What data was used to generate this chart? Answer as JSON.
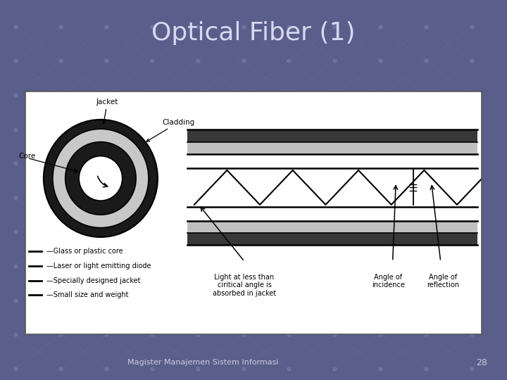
{
  "title": "Optical Fiber (1)",
  "title_color": "#D8D8F0",
  "title_fontsize": 26,
  "bg_color": "#5a5e8a",
  "footer_text": "Magister Manajemen Sistem Informasi",
  "footer_number": "28",
  "footer_color": "#CCCCDD",
  "label_jacket": "Jacket",
  "label_core": "Core",
  "label_cladding": "Cladding",
  "legend_items": [
    "Glass or plastic core",
    "Laser or light emitting diode",
    "Specially designed jacket",
    "Small size and weight"
  ],
  "caption_left": "Light at less than\nciritical angle is\nabsorbed in jacket",
  "caption_angle_incidence": "Angle of\nincidence",
  "caption_angle_reflection": "Angle of\nreflection"
}
